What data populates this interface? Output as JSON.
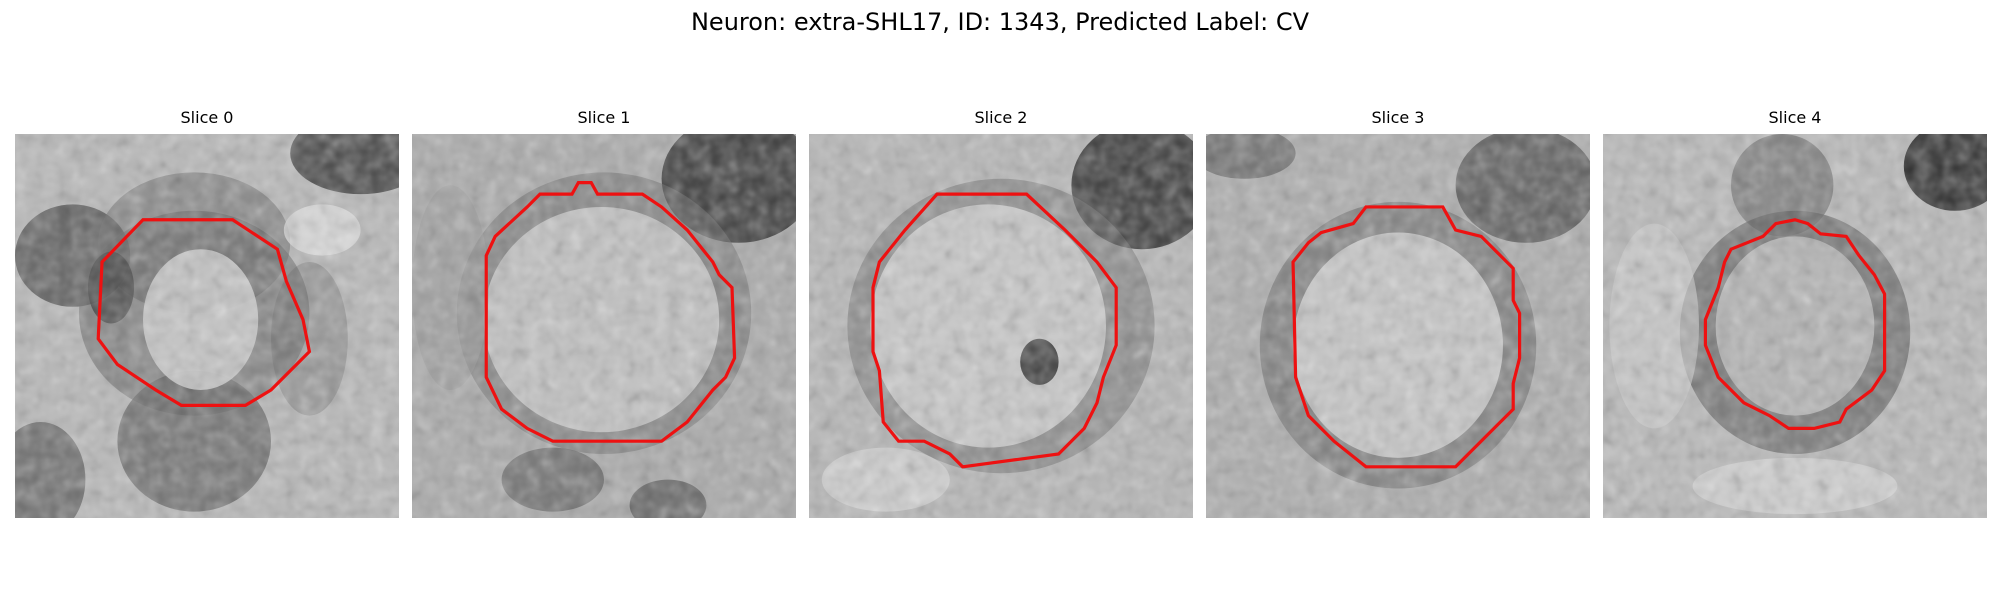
{
  "figure": {
    "title": "Neuron: extra-SHL17, ID: 1343, Predicted Label: CV"
  },
  "colors": {
    "contour": "#ee1111",
    "background": "#ffffff"
  },
  "slices": [
    {
      "title": "Slice 0"
    },
    {
      "title": "Slice 1"
    },
    {
      "title": "Slice 2"
    },
    {
      "title": "Slice 3"
    },
    {
      "title": "Slice 4"
    }
  ]
}
